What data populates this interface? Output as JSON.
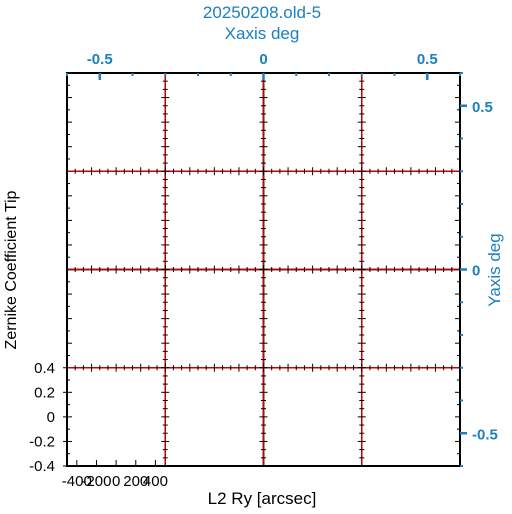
{
  "chart_data": {
    "type": "scatter",
    "title": "20250208.old-5",
    "top_axis": {
      "label": "Xaxis deg",
      "ticks": [
        "-0.5",
        "0",
        "0.5"
      ],
      "values": [
        -0.5,
        0,
        0.5
      ],
      "range": [
        -0.6,
        0.6
      ]
    },
    "right_axis": {
      "label": "Yaxis deg",
      "ticks": [
        "0.5",
        "0",
        "-0.5"
      ],
      "values": [
        0.5,
        0,
        -0.5
      ],
      "range": [
        -0.6,
        0.6
      ]
    },
    "xlabel": "L2 Ry [arcsec]",
    "ylabel": "Zernike Coefficient Tip",
    "panel_xticks": [
      "-400",
      "-200",
      "0",
      "200",
      "400"
    ],
    "panel_xtick_values": [
      -400,
      -200,
      0,
      200,
      400
    ],
    "panel_xlim": [
      -500,
      500
    ],
    "panel_yticks": [
      "0.4",
      "0.2",
      "0",
      "-0.2",
      "-0.4"
    ],
    "panel_ytick_values": [
      0.4,
      0.2,
      0,
      -0.2,
      -0.4
    ],
    "panel_ylim": [
      -0.4,
      0.4
    ],
    "grid": {
      "rows": 4,
      "cols": 4
    },
    "line_color": "#cc0000",
    "axis_color": "#1b7fc0"
  }
}
